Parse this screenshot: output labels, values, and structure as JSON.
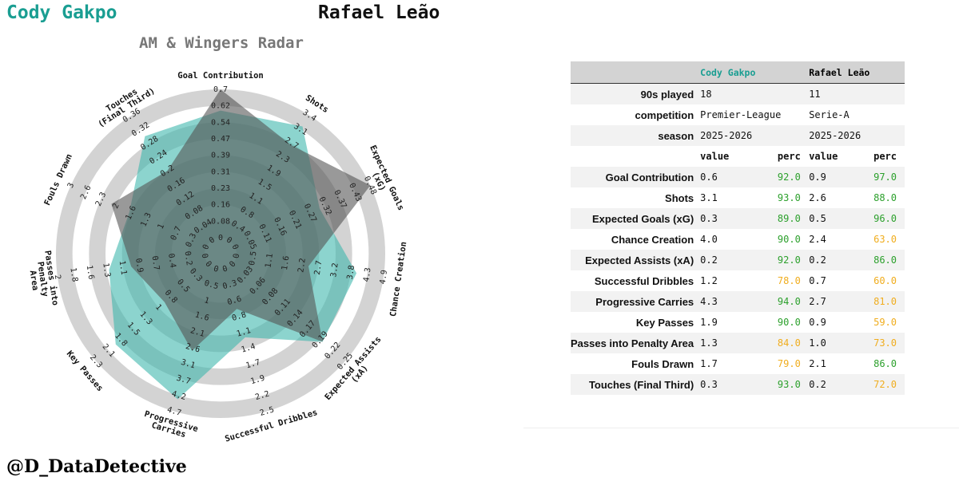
{
  "header": {
    "player_a": "Cody Gakpo",
    "player_b": "Rafael Leão",
    "player_a_color": "#1a9e92",
    "player_b_color": "#111111"
  },
  "chart_data": {
    "type": "radar",
    "title": "AM & Wingers Radar",
    "categories": [
      "Goal Contribution",
      "Shots",
      "Expected Goals (xG)",
      "Chance Creation",
      "Expected Assists (xA)",
      "Successful Dribbles",
      "Progressive Carries",
      "Key Passes",
      "Passes into Penalty Area",
      "Fouls Drawn",
      "Touches (Final Third)"
    ],
    "axis_labels": [
      "Goal Contribution",
      "Shots",
      "Expected Goals (xG)",
      "Chance Creation",
      "Expected Assists (xA)",
      "Successful Dribbles",
      "Progressive Carries",
      "Key Passes",
      "Passes into Penalty Area",
      "Fouls Drawn",
      "Touches (Final Third)"
    ],
    "tick_labels": [
      [
        "0",
        "0.08",
        "0.16",
        "0.23",
        "0.31",
        "0.39",
        "0.47",
        "0.54",
        "0.62",
        "0.7"
      ],
      [
        "0",
        "0.4",
        "0.8",
        "1.1",
        "1.5",
        "1.9",
        "2.3",
        "2.7",
        "3.1",
        "3.4"
      ],
      [
        "0",
        "0.05",
        "0.11",
        "0.16",
        "0.21",
        "0.27",
        "0.32",
        "0.37",
        "0.43",
        "0.48"
      ],
      [
        "0",
        "0.5",
        "1.1",
        "1.6",
        "2.2",
        "2.7",
        "3.2",
        "3.8",
        "4.3",
        "4.9"
      ],
      [
        "0",
        "0.03",
        "0.06",
        "0.08",
        "0.11",
        "0.14",
        "0.17",
        "0.19",
        "0.22",
        "0.25"
      ],
      [
        "0",
        "0.3",
        "0.6",
        "0.8",
        "1.1",
        "1.4",
        "1.7",
        "1.9",
        "2.2",
        "2.5"
      ],
      [
        "0",
        "0.5",
        "1",
        "1.6",
        "2.1",
        "2.6",
        "3.1",
        "3.7",
        "4.2",
        "4.7"
      ],
      [
        "0",
        "0.3",
        "0.5",
        "0.8",
        "1",
        "1.3",
        "1.5",
        "1.8",
        "2.1",
        "2.3"
      ],
      [
        "0",
        "0.2",
        "0.4",
        "0.7",
        "0.9",
        "1.1",
        "1.3",
        "1.6",
        "1.8",
        "2"
      ],
      [
        "0",
        "0.3",
        "0.7",
        "1",
        "1.3",
        "1.6",
        "2",
        "2.3",
        "2.6",
        "3"
      ],
      [
        "0",
        "0.04",
        "0.08",
        "0.12",
        "0.16",
        "0.2",
        "0.24",
        "0.28",
        "0.32",
        "0.36"
      ]
    ],
    "range_min": [
      0,
      0,
      0,
      0,
      0,
      0,
      0,
      0,
      0,
      0,
      0
    ],
    "range_max": [
      0.7,
      3.4,
      0.48,
      4.9,
      0.25,
      2.5,
      4.7,
      2.3,
      2.0,
      3.0,
      0.36
    ],
    "series": [
      {
        "name": "Cody Gakpo",
        "values": [
          0.6,
          3.1,
          0.3,
          4.0,
          0.2,
          1.2,
          4.3,
          1.9,
          1.3,
          1.7,
          0.3
        ],
        "color": "#3fb8ad"
      },
      {
        "name": "Rafael Leão",
        "values": [
          0.9,
          2.6,
          0.5,
          2.4,
          0.2,
          0.7,
          2.7,
          0.9,
          1.0,
          2.1,
          0.2
        ],
        "color": "#555555"
      }
    ],
    "ring_color": "#d3d3d3"
  },
  "table": {
    "player_a": "Cody Gakpo",
    "player_b": "Rafael Leão",
    "meta": [
      {
        "label": "90s played",
        "a": "18",
        "b": "11"
      },
      {
        "label": "competition",
        "a": "Premier-League",
        "b": "Serie-A"
      },
      {
        "label": "season",
        "a": "2025-2026",
        "b": "2025-2026"
      }
    ],
    "subheader": {
      "value": "value",
      "perc": "perc"
    },
    "rows": [
      {
        "label": "Goal Contribution",
        "a_value": "0.6",
        "a_perc": "92.0",
        "b_value": "0.9",
        "b_perc": "97.0"
      },
      {
        "label": "Shots",
        "a_value": "3.1",
        "a_perc": "93.0",
        "b_value": "2.6",
        "b_perc": "88.0"
      },
      {
        "label": "Expected Goals (xG)",
        "a_value": "0.3",
        "a_perc": "89.0",
        "b_value": "0.5",
        "b_perc": "96.0"
      },
      {
        "label": "Chance Creation",
        "a_value": "4.0",
        "a_perc": "90.0",
        "b_value": "2.4",
        "b_perc": "63.0"
      },
      {
        "label": "Expected Assists (xA)",
        "a_value": "0.2",
        "a_perc": "92.0",
        "b_value": "0.2",
        "b_perc": "86.0"
      },
      {
        "label": "Successful Dribbles",
        "a_value": "1.2",
        "a_perc": "78.0",
        "b_value": "0.7",
        "b_perc": "60.0"
      },
      {
        "label": "Progressive Carries",
        "a_value": "4.3",
        "a_perc": "94.0",
        "b_value": "2.7",
        "b_perc": "81.0"
      },
      {
        "label": "Key Passes",
        "a_value": "1.9",
        "a_perc": "90.0",
        "b_value": "0.9",
        "b_perc": "59.0"
      },
      {
        "label": "Passes into Penalty Area",
        "a_value": "1.3",
        "a_perc": "84.0",
        "b_value": "1.0",
        "b_perc": "73.0"
      },
      {
        "label": "Fouls Drawn",
        "a_value": "1.7",
        "a_perc": "79.0",
        "b_value": "2.1",
        "b_perc": "86.0"
      },
      {
        "label": "Touches (Final Third)",
        "a_value": "0.3",
        "a_perc": "93.0",
        "b_value": "0.2",
        "b_perc": "72.0"
      }
    ],
    "perc_colors": {
      "high": "#2ca02c",
      "mid": "#f0ad1e",
      "low": "#d9534f"
    }
  },
  "watermark": "@D_DataDetective"
}
